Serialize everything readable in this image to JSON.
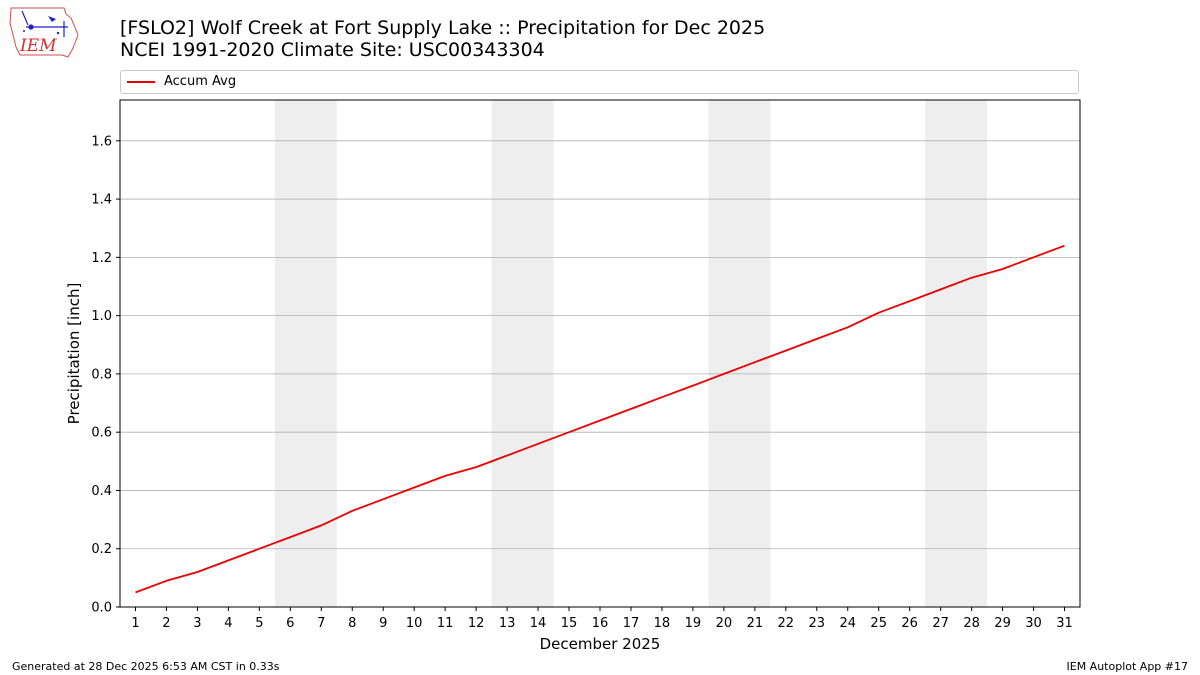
{
  "header": {
    "title_line1": "[FSLO2] Wolf Creek at Fort Supply Lake :: Precipitation for Dec 2025",
    "title_line2": "NCEI 1991-2020 Climate Site: USC00343304",
    "logo_text": "IEM"
  },
  "footer": {
    "left": "Generated at 28 Dec 2025 6:53 AM CST in 0.33s",
    "right": "IEM Autoplot App #17"
  },
  "colors": {
    "series": "#ee0000",
    "weekend_band": "#eeeeee",
    "grid": "#b0b0b0"
  },
  "chart_data": {
    "type": "line",
    "xlabel": "December 2025",
    "ylabel": "Precipitation [inch]",
    "xlim": [
      0.5,
      31.5
    ],
    "ylim": [
      0,
      1.74
    ],
    "yticks": [
      0.0,
      0.2,
      0.4,
      0.6,
      0.8,
      1.0,
      1.2,
      1.4,
      1.6
    ],
    "ytick_labels": [
      "0.0",
      "0.2",
      "0.4",
      "0.6",
      "0.8",
      "1.0",
      "1.2",
      "1.4",
      "1.6"
    ],
    "x": [
      1,
      2,
      3,
      4,
      5,
      6,
      7,
      8,
      9,
      10,
      11,
      12,
      13,
      14,
      15,
      16,
      17,
      18,
      19,
      20,
      21,
      22,
      23,
      24,
      25,
      26,
      27,
      28,
      29,
      30,
      31
    ],
    "xtick_labels": [
      "1",
      "2",
      "3",
      "4",
      "5",
      "6",
      "7",
      "8",
      "9",
      "10",
      "11",
      "12",
      "13",
      "14",
      "15",
      "16",
      "17",
      "18",
      "19",
      "20",
      "21",
      "22",
      "23",
      "24",
      "25",
      "26",
      "27",
      "28",
      "29",
      "30",
      "31"
    ],
    "grid": "y",
    "legend_position": "top",
    "shaded_ranges": [
      [
        5.5,
        7.5
      ],
      [
        12.5,
        14.5
      ],
      [
        19.5,
        21.5
      ],
      [
        26.5,
        28.5
      ]
    ],
    "series": [
      {
        "name": "Accum Avg",
        "values": [
          0.05,
          0.09,
          0.12,
          0.16,
          0.2,
          0.24,
          0.28,
          0.33,
          0.37,
          0.41,
          0.45,
          0.48,
          0.52,
          0.56,
          0.6,
          0.64,
          0.68,
          0.72,
          0.76,
          0.8,
          0.84,
          0.88,
          0.92,
          0.96,
          1.01,
          1.05,
          1.09,
          1.13,
          1.16,
          1.2,
          1.24
        ]
      }
    ]
  }
}
